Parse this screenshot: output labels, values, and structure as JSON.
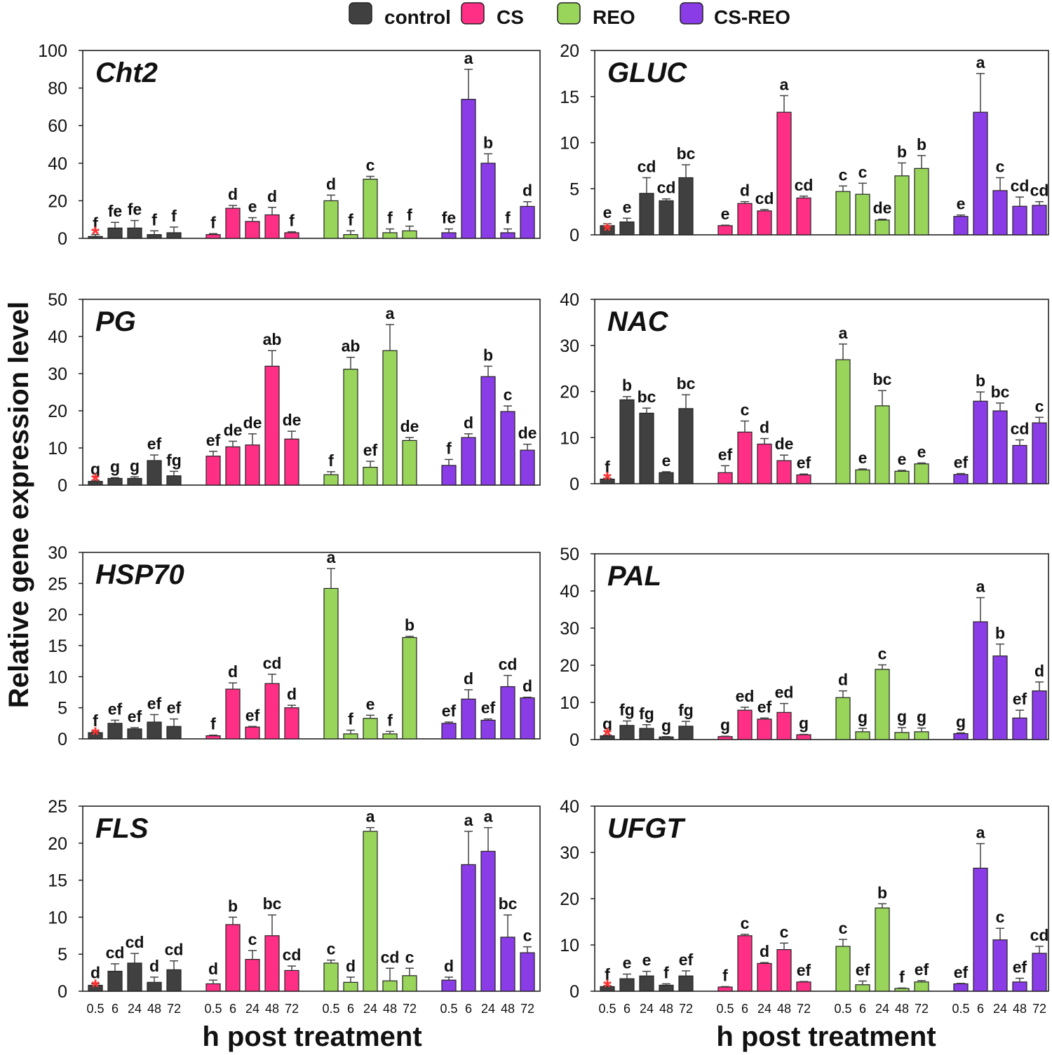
{
  "legend": [
    {
      "name": "control",
      "color": "#404040"
    },
    {
      "name": "CS",
      "color": "#ff2f86"
    },
    {
      "name": "REO",
      "color": "#99d55a"
    },
    {
      "name": "CS-REO",
      "color": "#8a3ce6"
    }
  ],
  "ylabel": "Relative gene expression level",
  "xlabel": "h post treatment",
  "timepoints": [
    "0.5",
    "6",
    "24",
    "48",
    "72"
  ],
  "reference_marker": "*",
  "chart_data": [
    {
      "type": "bar",
      "title": "Cht2",
      "ylim": [
        0,
        100
      ],
      "yticks": [
        0,
        20,
        40,
        60,
        80,
        100
      ],
      "categories": [
        "0.5",
        "6",
        "24",
        "48",
        "72"
      ],
      "series": [
        {
          "name": "control",
          "values": [
            1,
            5.5,
            5.5,
            2,
            3
          ],
          "errors": [
            1,
            3,
            4,
            2,
            3
          ],
          "letters": [
            "f",
            "fe",
            "fe",
            "f",
            "f"
          ]
        },
        {
          "name": "CS",
          "values": [
            2,
            16,
            9,
            12.5,
            3
          ],
          "errors": [
            0.5,
            1.5,
            2,
            4,
            0.5
          ],
          "letters": [
            "f",
            "d",
            "e",
            "d",
            "f"
          ]
        },
        {
          "name": "REO",
          "values": [
            20,
            2,
            31.5,
            3,
            4
          ],
          "errors": [
            3,
            2,
            1.5,
            2,
            2.5
          ],
          "letters": [
            "d",
            "f",
            "c",
            "f",
            "f"
          ]
        },
        {
          "name": "CS-REO",
          "values": [
            3,
            74,
            40,
            3,
            17
          ],
          "errors": [
            2,
            16,
            5,
            2,
            2.5
          ],
          "letters": [
            "fe",
            "a",
            "b",
            "f",
            "d"
          ]
        }
      ]
    },
    {
      "type": "bar",
      "title": "GLUC",
      "ylim": [
        0,
        20
      ],
      "yticks": [
        0,
        5,
        10,
        15,
        20
      ],
      "categories": [
        "0.5",
        "6",
        "24",
        "48",
        "72"
      ],
      "series": [
        {
          "name": "control",
          "values": [
            1,
            1.4,
            4.5,
            3.7,
            6.2
          ],
          "errors": [
            0.2,
            0.4,
            1.7,
            0.2,
            1.4
          ],
          "letters": [
            "e",
            "e",
            "cd",
            "cd",
            "bc"
          ]
        },
        {
          "name": "CS",
          "values": [
            1,
            3.4,
            2.6,
            13.3,
            4
          ],
          "errors": [
            0.05,
            0.2,
            0.15,
            1.8,
            0.2
          ],
          "letters": [
            "e",
            "d",
            "cd",
            "a",
            "cd"
          ]
        },
        {
          "name": "REO",
          "values": [
            4.7,
            4.4,
            1.6,
            6.4,
            7.2
          ],
          "errors": [
            0.6,
            1.2,
            0.1,
            1.4,
            1.4
          ],
          "letters": [
            "c",
            "c",
            "de",
            "b",
            "b"
          ]
        },
        {
          "name": "CS-REO",
          "values": [
            2,
            13.3,
            4.8,
            3.1,
            3.2
          ],
          "errors": [
            0.15,
            4.2,
            1.4,
            1,
            0.4
          ],
          "letters": [
            "e",
            "a",
            "c",
            "cd",
            "cd"
          ]
        }
      ]
    },
    {
      "type": "bar",
      "title": "PG",
      "ylim": [
        0,
        50
      ],
      "yticks": [
        0,
        10,
        20,
        30,
        40,
        50
      ],
      "categories": [
        "0.5",
        "6",
        "24",
        "48",
        "72"
      ],
      "series": [
        {
          "name": "control",
          "values": [
            1,
            1.8,
            1.8,
            6.6,
            2.5
          ],
          "errors": [
            0.3,
            0.2,
            0.4,
            1.5,
            1.2
          ],
          "letters": [
            "g",
            "g",
            "g",
            "ef",
            "fg"
          ]
        },
        {
          "name": "CS",
          "values": [
            7.8,
            10.3,
            10.8,
            32,
            12.4
          ],
          "errors": [
            1.3,
            1.5,
            3,
            4.2,
            2.1
          ],
          "letters": [
            "ef",
            "de",
            "de",
            "ab",
            "de"
          ]
        },
        {
          "name": "REO",
          "values": [
            2.8,
            31.2,
            4.8,
            36.2,
            12
          ],
          "errors": [
            0.8,
            3.2,
            1.6,
            7,
            0.8
          ],
          "letters": [
            "f",
            "ab",
            "ef",
            "a",
            "de"
          ]
        },
        {
          "name": "CS-REO",
          "values": [
            5.3,
            12.8,
            29.2,
            19.8,
            9.4
          ],
          "errors": [
            1.6,
            1,
            2.8,
            1.5,
            1.6
          ],
          "letters": [
            "f",
            "d",
            "b",
            "c",
            "de"
          ]
        }
      ]
    },
    {
      "type": "bar",
      "title": "NAC",
      "ylim": [
        0,
        40
      ],
      "yticks": [
        0,
        10,
        20,
        30,
        40
      ],
      "categories": [
        "0.5",
        "6",
        "24",
        "48",
        "72"
      ],
      "series": [
        {
          "name": "control",
          "values": [
            1,
            18.2,
            15.3,
            2.4,
            16.3
          ],
          "errors": [
            0.2,
            0.7,
            1.1,
            0.2,
            3
          ],
          "letters": [
            "f",
            "b",
            "bc",
            "e",
            "bc"
          ]
        },
        {
          "name": "CS",
          "values": [
            2.4,
            11.2,
            8.6,
            5,
            1.9
          ],
          "errors": [
            1.5,
            2.4,
            1.2,
            1.2,
            0.2
          ],
          "letters": [
            "ef",
            "c",
            "d",
            "de",
            "ef"
          ]
        },
        {
          "name": "REO",
          "values": [
            26.9,
            3,
            16.9,
            2.7,
            4.3
          ],
          "errors": [
            3.4,
            0.2,
            3.3,
            0.2,
            0.2
          ],
          "letters": [
            "a",
            "e",
            "bc",
            "e",
            "e"
          ]
        },
        {
          "name": "CS-REO",
          "values": [
            2,
            17.9,
            15.8,
            8.3,
            13.2
          ],
          "errors": [
            0.2,
            2,
            1.7,
            1.2,
            1.2
          ],
          "letters": [
            "ef",
            "b",
            "bc",
            "cd",
            "c"
          ]
        }
      ]
    },
    {
      "type": "bar",
      "title": "HSP70",
      "ylim": [
        0,
        30
      ],
      "yticks": [
        0,
        5,
        10,
        15,
        20,
        25,
        30
      ],
      "categories": [
        "0.5",
        "6",
        "24",
        "48",
        "72"
      ],
      "series": [
        {
          "name": "control",
          "values": [
            1,
            2.5,
            1.6,
            2.7,
            2
          ],
          "errors": [
            0.1,
            0.5,
            0.2,
            1.2,
            1.2
          ],
          "letters": [
            "f",
            "ef",
            "ef",
            "ef",
            "ef"
          ]
        },
        {
          "name": "CS",
          "values": [
            0.5,
            8,
            1.9,
            8.9,
            5
          ],
          "errors": [
            0.1,
            1,
            0.1,
            1.5,
            0.4
          ],
          "letters": [
            "f",
            "d",
            "ef",
            "cd",
            "d"
          ]
        },
        {
          "name": "REO",
          "values": [
            24.2,
            0.8,
            3.3,
            0.8,
            16.3
          ],
          "errors": [
            3.2,
            0.6,
            0.5,
            0.4,
            0.2
          ],
          "letters": [
            "a",
            "f",
            "e",
            "f",
            "b"
          ]
        },
        {
          "name": "CS-REO",
          "values": [
            2.5,
            6.4,
            3,
            8.4,
            6.6
          ],
          "errors": [
            0.2,
            1.5,
            0.2,
            1.8,
            0.1
          ],
          "letters": [
            "ef",
            "d",
            "ef",
            "cd",
            "d"
          ]
        }
      ]
    },
    {
      "type": "bar",
      "title": "PAL",
      "ylim": [
        0,
        50
      ],
      "yticks": [
        0,
        10,
        20,
        30,
        40,
        50
      ],
      "categories": [
        "0.5",
        "6",
        "24",
        "48",
        "72"
      ],
      "series": [
        {
          "name": "control",
          "values": [
            1,
            3.8,
            3,
            0.7,
            3.6
          ],
          "errors": [
            0.2,
            1.2,
            1,
            0.1,
            1.3
          ],
          "letters": [
            "g",
            "fg",
            "fg",
            "g",
            "fg"
          ]
        },
        {
          "name": "CS",
          "values": [
            0.8,
            7.9,
            5.5,
            7.3,
            1.3
          ],
          "errors": [
            0.1,
            0.8,
            0.3,
            2.4,
            0.1
          ],
          "letters": [
            "g",
            "ed",
            "ef",
            "ed",
            "g"
          ]
        },
        {
          "name": "REO",
          "values": [
            11.3,
            2.1,
            18.9,
            1.9,
            2.1
          ],
          "errors": [
            1.8,
            0.9,
            1.2,
            1.3,
            1
          ],
          "letters": [
            "d",
            "g",
            "c",
            "g",
            "g"
          ]
        },
        {
          "name": "CS-REO",
          "values": [
            1.6,
            31.7,
            22.5,
            5.8,
            13.1
          ],
          "errors": [
            0.2,
            6.5,
            3.2,
            2.1,
            2.4
          ],
          "letters": [
            "g",
            "a",
            "b",
            "ef",
            "d"
          ]
        }
      ]
    },
    {
      "type": "bar",
      "title": "FLS",
      "ylim": [
        0,
        25
      ],
      "yticks": [
        0,
        5,
        10,
        15,
        20,
        25
      ],
      "categories": [
        "0.5",
        "6",
        "24",
        "48",
        "72"
      ],
      "series": [
        {
          "name": "control",
          "values": [
            0.8,
            2.7,
            3.8,
            1.2,
            2.9
          ],
          "errors": [
            0.2,
            1,
            1.3,
            0.7,
            1.2
          ],
          "letters": [
            "d",
            "cd",
            "cd",
            "d",
            "cd"
          ]
        },
        {
          "name": "CS",
          "values": [
            1,
            9,
            4.3,
            7.5,
            2.8
          ],
          "errors": [
            0.5,
            1,
            1.2,
            2.8,
            0.6
          ],
          "letters": [
            "d",
            "b",
            "c",
            "bc",
            "cd"
          ]
        },
        {
          "name": "REO",
          "values": [
            3.8,
            1.2,
            21.6,
            1.4,
            2.1
          ],
          "errors": [
            0.4,
            0.7,
            0.5,
            1.7,
            1
          ],
          "letters": [
            "c",
            "d",
            "a",
            "cd",
            "c"
          ]
        },
        {
          "name": "CS-REO",
          "values": [
            1.5,
            17.1,
            18.9,
            7.3,
            5.2
          ],
          "errors": [
            0.4,
            4.5,
            3.2,
            3,
            0.8
          ],
          "letters": [
            "d",
            "a",
            "a",
            "bc",
            "c"
          ]
        }
      ]
    },
    {
      "type": "bar",
      "title": "UFGT",
      "ylim": [
        0,
        40
      ],
      "yticks": [
        0,
        10,
        20,
        30,
        40
      ],
      "categories": [
        "0.5",
        "6",
        "24",
        "48",
        "72"
      ],
      "series": [
        {
          "name": "control",
          "values": [
            1,
            2.7,
            3.3,
            1.3,
            3.3
          ],
          "errors": [
            0.2,
            1,
            1,
            0.3,
            1.1
          ],
          "letters": [
            "f",
            "e",
            "e",
            "f",
            "ef"
          ]
        },
        {
          "name": "CS",
          "values": [
            0.9,
            12,
            6,
            9,
            2
          ],
          "errors": [
            0.1,
            0.3,
            0.2,
            1.4,
            0.1
          ],
          "letters": [
            "f",
            "c",
            "d",
            "c",
            "ef"
          ]
        },
        {
          "name": "REO",
          "values": [
            9.7,
            1.4,
            18,
            0.6,
            2
          ],
          "errors": [
            1.5,
            0.8,
            0.9,
            0.1,
            0.3
          ],
          "letters": [
            "c",
            "ef",
            "b",
            "f",
            "ef"
          ]
        },
        {
          "name": "CS-REO",
          "values": [
            1.6,
            26.6,
            11.1,
            2,
            8.2
          ],
          "errors": [
            0.1,
            5.3,
            2.5,
            0.8,
            1.5
          ],
          "letters": [
            "ef",
            "a",
            "c",
            "ef",
            "cd"
          ]
        }
      ]
    }
  ]
}
